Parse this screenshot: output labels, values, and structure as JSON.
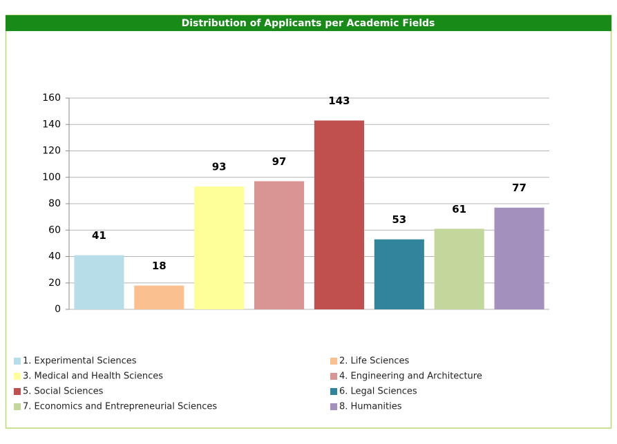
{
  "chart_data": {
    "type": "bar",
    "title": "Distribution of Applicants per Academic Fields",
    "categories": [
      "1. Experimental Sciences",
      "2. Life Sciences",
      "3. Medical and Health Sciences",
      "4. Engineering and Architecture",
      "5. Social Sciences",
      "6. Legal Sciences",
      "7. Economics and Entrepreneurial Sciences",
      "8. Humanities"
    ],
    "values": [
      41,
      18,
      93,
      97,
      143,
      53,
      61,
      77
    ],
    "colors": [
      "#b7dde8",
      "#fac090",
      "#ffff99",
      "#d99594",
      "#c0504d",
      "#31849b",
      "#c3d69b",
      "#a390bd"
    ],
    "ylim": [
      0,
      160
    ],
    "yticks": [
      0,
      20,
      40,
      60,
      80,
      100,
      120,
      140,
      160
    ],
    "grid": true,
    "legend": "bottom"
  }
}
